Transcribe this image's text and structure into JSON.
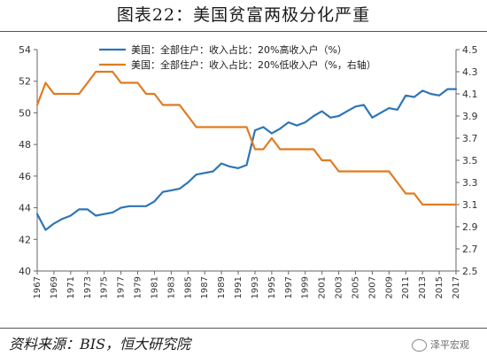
{
  "header": {
    "title": "图表22：美国贫富两极分化严重"
  },
  "footer": {
    "source": "资料来源：BIS，恒大研究院",
    "watermark": "泽平宏观"
  },
  "colors": {
    "series_high": "#2e75b6",
    "series_low": "#e07b1f",
    "axis": "#666666"
  },
  "chart_data": {
    "type": "line",
    "x_tick_labels": [
      "1967",
      "1969",
      "1971",
      "1973",
      "1975",
      "1977",
      "1979",
      "1981",
      "1983",
      "1985",
      "1987",
      "1989",
      "1991",
      "1993",
      "1995",
      "1997",
      "1999",
      "2001",
      "2003",
      "2005",
      "2007",
      "2009",
      "2011",
      "2013",
      "2015",
      "2017"
    ],
    "xlim": [
      1967,
      2017
    ],
    "y_left": {
      "lim": [
        40,
        54
      ],
      "ticks": [
        "40",
        "42",
        "44",
        "46",
        "48",
        "50",
        "52",
        "54"
      ]
    },
    "y_right": {
      "lim": [
        2.5,
        4.5
      ],
      "ticks": [
        "2.5",
        "2.7",
        "2.9",
        "3.1",
        "3.3",
        "3.5",
        "3.7",
        "3.9",
        "4.1",
        "4.3",
        "4.5"
      ]
    },
    "legend_position": "top-center",
    "series": [
      {
        "name": "美国：全部住户：收入占比：20%高收入户（%）",
        "axis": "left",
        "x": [
          1967,
          1968,
          1969,
          1970,
          1971,
          1972,
          1973,
          1974,
          1975,
          1976,
          1977,
          1978,
          1979,
          1980,
          1981,
          1982,
          1983,
          1984,
          1985,
          1986,
          1987,
          1988,
          1989,
          1990,
          1991,
          1992,
          1993,
          1994,
          1995,
          1996,
          1997,
          1998,
          1999,
          2000,
          2001,
          2002,
          2003,
          2004,
          2005,
          2006,
          2007,
          2008,
          2009,
          2010,
          2011,
          2012,
          2013,
          2014,
          2015,
          2016,
          2017
        ],
        "values": [
          43.6,
          42.6,
          43.0,
          43.3,
          43.5,
          43.9,
          43.9,
          43.5,
          43.6,
          43.7,
          44.0,
          44.1,
          44.1,
          44.1,
          44.4,
          45.0,
          45.1,
          45.2,
          45.6,
          46.1,
          46.2,
          46.3,
          46.8,
          46.6,
          46.5,
          46.7,
          48.9,
          49.1,
          48.7,
          49.0,
          49.4,
          49.2,
          49.4,
          49.8,
          50.1,
          49.7,
          49.8,
          50.1,
          50.4,
          50.5,
          49.7,
          50.0,
          50.3,
          50.2,
          51.1,
          51.0,
          51.4,
          51.2,
          51.1,
          51.5,
          51.5
        ]
      },
      {
        "name": "美国：全部住户：收入占比：20%低收入户（%，右轴）",
        "axis": "right",
        "x": [
          1967,
          1968,
          1969,
          1970,
          1971,
          1972,
          1973,
          1974,
          1975,
          1976,
          1977,
          1978,
          1979,
          1980,
          1981,
          1982,
          1983,
          1984,
          1985,
          1986,
          1987,
          1988,
          1989,
          1990,
          1991,
          1992,
          1993,
          1994,
          1995,
          1996,
          1997,
          1998,
          1999,
          2000,
          2001,
          2002,
          2003,
          2004,
          2005,
          2006,
          2007,
          2008,
          2009,
          2010,
          2011,
          2012,
          2013,
          2014,
          2015,
          2016,
          2017
        ],
        "values": [
          4.0,
          4.2,
          4.1,
          4.1,
          4.1,
          4.1,
          4.2,
          4.3,
          4.3,
          4.3,
          4.2,
          4.2,
          4.2,
          4.1,
          4.1,
          4.0,
          4.0,
          4.0,
          3.9,
          3.8,
          3.8,
          3.8,
          3.8,
          3.8,
          3.8,
          3.8,
          3.6,
          3.6,
          3.7,
          3.6,
          3.6,
          3.6,
          3.6,
          3.6,
          3.5,
          3.5,
          3.4,
          3.4,
          3.4,
          3.4,
          3.4,
          3.4,
          3.4,
          3.3,
          3.2,
          3.2,
          3.1,
          3.1,
          3.1,
          3.1,
          3.1
        ]
      }
    ]
  }
}
